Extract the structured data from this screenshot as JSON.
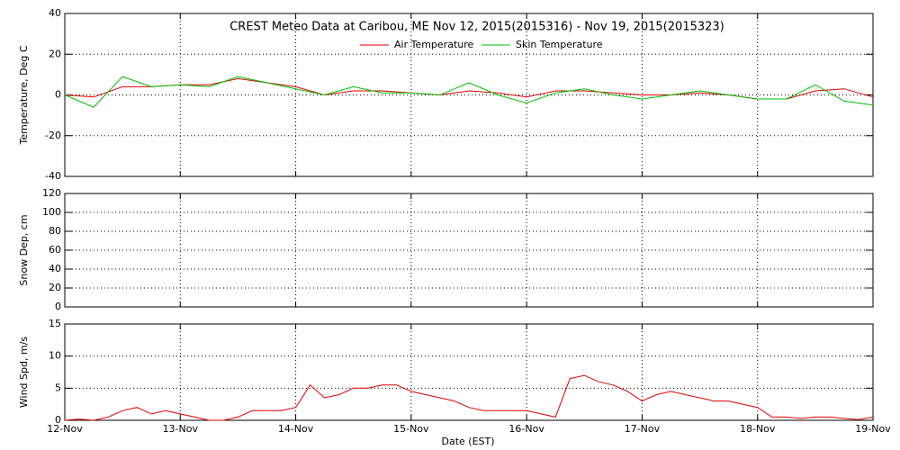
{
  "chart_data": [
    {
      "type": "line",
      "title": "CREST Meteo Data at Caribou, ME   Nov 12, 2015(2015316) - Nov 19, 2015(2015323)",
      "ylabel": "Temperature, Deg C",
      "x": [
        0,
        0.25,
        0.5,
        0.75,
        1,
        1.25,
        1.5,
        1.75,
        2,
        2.25,
        2.5,
        2.75,
        3,
        3.25,
        3.5,
        3.75,
        4,
        4.25,
        4.5,
        4.75,
        5,
        5.25,
        5.5,
        5.75,
        6,
        6.25,
        6.5,
        6.75,
        7
      ],
      "ylim": [
        -40,
        40
      ],
      "yticks": [
        -40,
        -20,
        0,
        20,
        40
      ],
      "grid": true,
      "series": [
        {
          "name": "Air Temperature",
          "color": "#e00000",
          "values": [
            0,
            -1,
            4,
            4,
            5,
            5,
            8,
            6,
            4,
            0,
            2,
            2,
            1,
            0,
            2,
            1,
            -1,
            2,
            2,
            1,
            0,
            0,
            1,
            0,
            -2,
            -2,
            2,
            3,
            -1
          ]
        },
        {
          "name": "Skin Temperature",
          "color": "#00c000",
          "values": [
            0,
            -6,
            9,
            4,
            5,
            4,
            9,
            6,
            3,
            0,
            4,
            1,
            1,
            0,
            6,
            0,
            -4,
            1,
            3,
            0,
            -2,
            0,
            2,
            0,
            -2,
            -2,
            5,
            -3,
            -5
          ]
        }
      ]
    },
    {
      "type": "line",
      "ylabel": "Snow Dep, cm",
      "ylim": [
        0,
        120
      ],
      "yticks": [
        0,
        20,
        40,
        60,
        80,
        100,
        120
      ],
      "grid": true,
      "series": []
    },
    {
      "type": "line",
      "ylabel": "Wind Spd, m/s",
      "xlabel": "Date (EST)",
      "x": [
        0,
        0.125,
        0.25,
        0.375,
        0.5,
        0.625,
        0.75,
        0.875,
        1,
        1.125,
        1.25,
        1.375,
        1.5,
        1.625,
        1.75,
        1.875,
        2,
        2.125,
        2.25,
        2.375,
        2.5,
        2.625,
        2.75,
        2.875,
        3,
        3.125,
        3.25,
        3.375,
        3.5,
        3.625,
        3.75,
        3.875,
        4,
        4.125,
        4.25,
        4.375,
        4.5,
        4.625,
        4.75,
        4.875,
        5,
        5.125,
        5.25,
        5.375,
        5.5,
        5.625,
        5.75,
        5.875,
        6,
        6.125,
        6.25,
        6.375,
        6.5,
        6.625,
        6.75,
        6.875,
        7
      ],
      "xlim": [
        0,
        7
      ],
      "xticks": [
        {
          "value": 0,
          "label": "12-Nov"
        },
        {
          "value": 1,
          "label": "13-Nov"
        },
        {
          "value": 2,
          "label": "14-Nov"
        },
        {
          "value": 3,
          "label": "15-Nov"
        },
        {
          "value": 4,
          "label": "16-Nov"
        },
        {
          "value": 5,
          "label": "17-Nov"
        },
        {
          "value": 6,
          "label": "18-Nov"
        },
        {
          "value": 7,
          "label": "19-Nov"
        }
      ],
      "ylim": [
        0,
        15
      ],
      "yticks": [
        0,
        5,
        10,
        15
      ],
      "grid": true,
      "series": [
        {
          "name": "Wind Speed",
          "color": "#e00000",
          "values": [
            0,
            0.2,
            0,
            0.5,
            1.5,
            2,
            1,
            1.5,
            1,
            0.5,
            0,
            0,
            0.5,
            1.5,
            1.5,
            1.5,
            2,
            5.5,
            3.5,
            4,
            5,
            5,
            5.5,
            5.5,
            4.5,
            4,
            3.5,
            3,
            2,
            1.5,
            1.5,
            1.5,
            1.5,
            1,
            0.5,
            6.5,
            7,
            6,
            5.5,
            4.5,
            3,
            4,
            4.5,
            4,
            3.5,
            3,
            3,
            2.5,
            2,
            0.5,
            0.5,
            0.3,
            0.5,
            0.5,
            0.3,
            0.1,
            0.5
          ]
        }
      ]
    }
  ]
}
